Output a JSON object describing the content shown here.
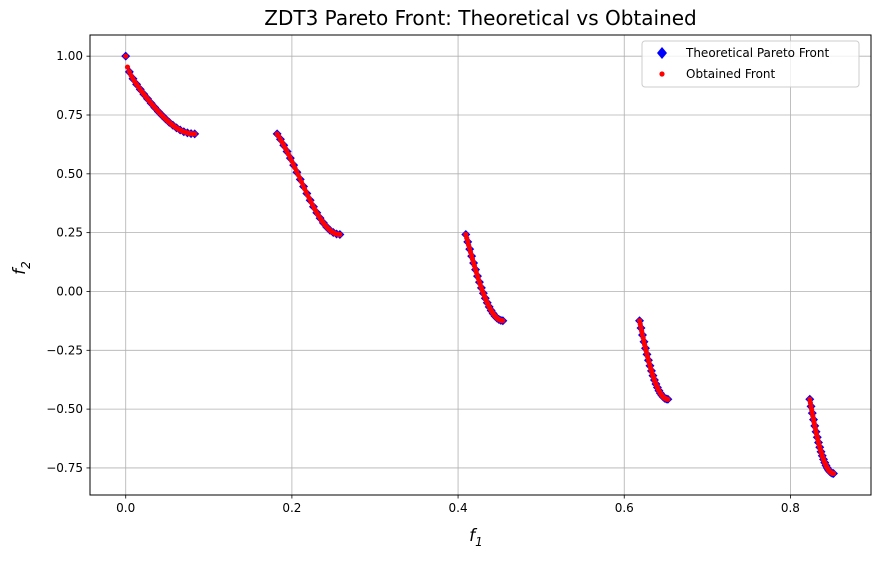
{
  "chart_data": {
    "type": "scatter",
    "title": "ZDT3 Pareto Front: Theoretical vs Obtained",
    "xlabel": {
      "base": "f",
      "sub": "1"
    },
    "ylabel": {
      "base": "f",
      "sub": "2"
    },
    "xlim": [
      -0.043,
      0.897
    ],
    "ylim": [
      -0.865,
      1.09
    ],
    "xticks": [
      {
        "v": 0.0,
        "label": "0.0"
      },
      {
        "v": 0.2,
        "label": "0.2"
      },
      {
        "v": 0.4,
        "label": "0.4"
      },
      {
        "v": 0.6,
        "label": "0.6"
      },
      {
        "v": 0.8,
        "label": "0.8"
      }
    ],
    "yticks": [
      {
        "v": -0.75,
        "label": "−0.75"
      },
      {
        "v": -0.5,
        "label": "−0.50"
      },
      {
        "v": -0.25,
        "label": "−0.25"
      },
      {
        "v": 0.0,
        "label": "0.00"
      },
      {
        "v": 0.25,
        "label": "0.25"
      },
      {
        "v": 0.5,
        "label": "0.50"
      },
      {
        "v": 0.75,
        "label": "0.75"
      },
      {
        "v": 1.0,
        "label": "1.00"
      }
    ],
    "grid": true,
    "legend_position": "top-right",
    "segments": [
      [
        0.0,
        0.0830015349
      ],
      [
        0.182228728,
        0.2577623634
      ],
      [
        0.4093136748,
        0.4538821041
      ],
      [
        0.6183967944,
        0.6525117038
      ],
      [
        0.8233317983,
        0.8518328654
      ]
    ],
    "series": [
      {
        "name": "Theoretical Pareto Front",
        "marker": "diamond",
        "color": "#0000ff",
        "points_per_segment": 20
      },
      {
        "name": "Obtained Front",
        "marker": "circle",
        "color": "#ff0000",
        "points_per_segment": 40
      }
    ]
  }
}
